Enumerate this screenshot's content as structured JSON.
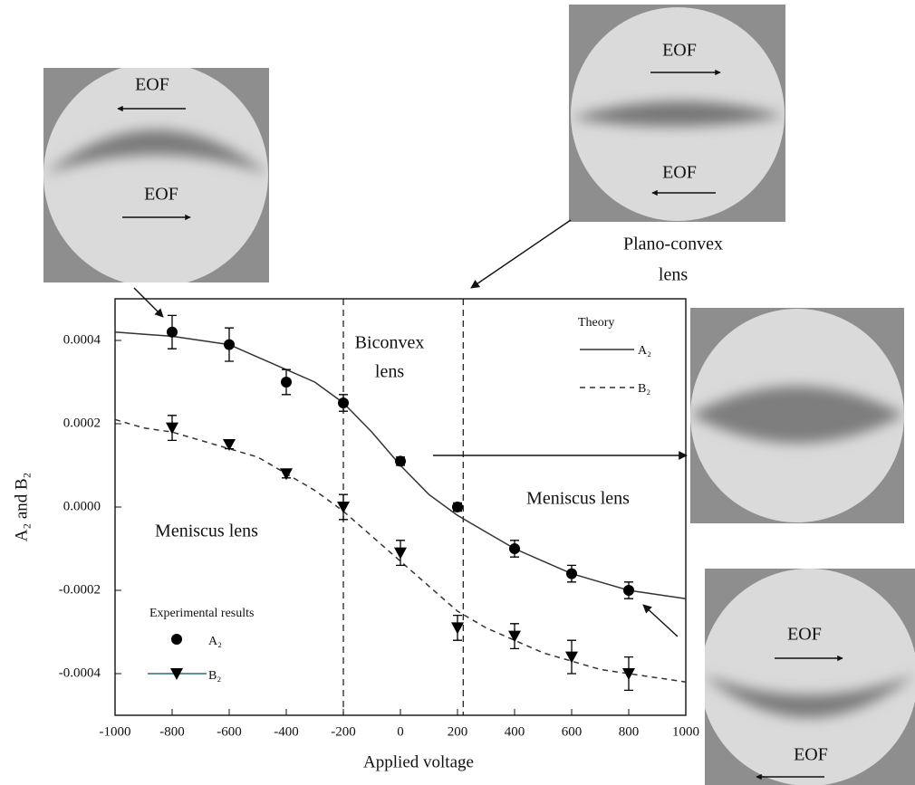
{
  "chart_data": {
    "type": "scatter",
    "xlabel": "Applied voltage",
    "ylabel": "A₂ and B₂",
    "xlim": [
      -1000,
      1000
    ],
    "ylim": [
      -0.0005,
      0.0005
    ],
    "xticks": [
      -1000,
      -800,
      -600,
      -400,
      -200,
      0,
      200,
      400,
      600,
      800,
      1000
    ],
    "yticks": [
      -0.0004,
      -0.0002,
      {
        "value": 0,
        "label": "0.0000"
      },
      0.0002,
      0.0004
    ],
    "x": [
      -800,
      -600,
      -400,
      -200,
      0,
      200,
      400,
      600,
      800
    ],
    "series": [
      {
        "name": "A₂",
        "marker": "circle",
        "color": "#000000",
        "values": [
          0.00042,
          0.00039,
          0.0003,
          0.00025,
          0.00011,
          0.0,
          -0.0001,
          -0.00016,
          -0.0002
        ],
        "errors": [
          4e-05,
          4e-05,
          3e-05,
          2e-05,
          1e-05,
          1e-05,
          2e-05,
          2e-05,
          2e-05
        ]
      },
      {
        "name": "B₂",
        "marker": "triangle-down",
        "color": "#000000",
        "values": [
          0.00019,
          0.00015,
          8e-05,
          0.0,
          -0.00011,
          -0.00029,
          -0.00031,
          -0.00036,
          -0.0004
        ],
        "errors": [
          3e-05,
          1e-05,
          1e-05,
          3e-05,
          3e-05,
          3e-05,
          3e-05,
          4e-05,
          4e-05
        ]
      }
    ],
    "experimental_title": "Experimental results",
    "theory_title": "Theory",
    "theory_x": [
      -1000,
      -900,
      -800,
      -700,
      -600,
      -500,
      -400,
      -300,
      -200,
      -100,
      0,
      100,
      200,
      300,
      400,
      500,
      600,
      700,
      800,
      900,
      1000
    ],
    "theory": [
      {
        "name": "A₂",
        "dashed": false,
        "color": "#333333",
        "values": [
          0.00042,
          0.000415,
          0.00041,
          0.0004,
          0.00039,
          0.00036,
          0.00033,
          0.0003,
          0.00025,
          0.00018,
          0.0001,
          3e-05,
          -2e-05,
          -6e-05,
          -0.0001,
          -0.00013,
          -0.00016,
          -0.00018,
          -0.0002,
          -0.00021,
          -0.00022
        ]
      },
      {
        "name": "B₂",
        "dashed": true,
        "color": "#333333",
        "values": [
          0.00021,
          0.00019,
          0.00018,
          0.00016,
          0.00014,
          0.00012,
          8e-05,
          4e-05,
          -1e-05,
          -7e-05,
          -0.00013,
          -0.00019,
          -0.00025,
          -0.00029,
          -0.00032,
          -0.00035,
          -0.00037,
          -0.00039,
          -0.0004,
          -0.00041,
          -0.00042
        ]
      }
    ],
    "vlines": [
      -200,
      220
    ],
    "annotations": [
      [
        "Biconvex",
        "lens"
      ],
      [
        "Meniscus lens"
      ],
      [
        "Meniscus lens"
      ]
    ],
    "eof_labels": [
      "EOF",
      "EOF",
      "EOF",
      "EOF",
      "EOF",
      "EOF"
    ],
    "inset_caption": [
      "Plano-convex",
      "lens"
    ]
  }
}
